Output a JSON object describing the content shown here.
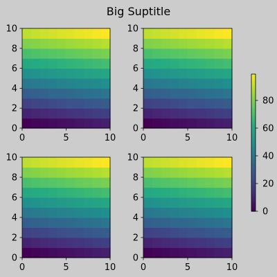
{
  "chart_data": {
    "type": "heatmap",
    "title": "Big Suptitle",
    "colormap": "viridis",
    "background": "#cccccc",
    "panels": [
      {
        "name": "top-left",
        "xlim": [
          0,
          10
        ],
        "ylim": [
          0,
          10
        ],
        "xticks": [
          "0",
          "5",
          "10"
        ],
        "yticks": [
          "0",
          "2",
          "4",
          "6",
          "8",
          "10"
        ],
        "rows": 10,
        "cols": 10,
        "values_formula": "row*10 + col (row 0 at bottom)"
      },
      {
        "name": "top-right",
        "xlim": [
          0,
          10
        ],
        "ylim": [
          0,
          10
        ],
        "xticks": [
          "0",
          "5",
          "10"
        ],
        "yticks": [
          "0",
          "2",
          "4",
          "6",
          "8",
          "10"
        ],
        "rows": 10,
        "cols": 10,
        "values_formula": "row*10 + col (row 0 at bottom)"
      },
      {
        "name": "bottom-left",
        "xlim": [
          0,
          10
        ],
        "ylim": [
          0,
          10
        ],
        "xticks": [
          "0",
          "5",
          "10"
        ],
        "yticks": [
          "0",
          "2",
          "4",
          "6",
          "8",
          "10"
        ],
        "rows": 10,
        "cols": 10,
        "values_formula": "row*10 + col (row 0 at bottom)"
      },
      {
        "name": "bottom-right",
        "xlim": [
          0,
          10
        ],
        "ylim": [
          0,
          10
        ],
        "xticks": [
          "0",
          "5",
          "10"
        ],
        "yticks": [
          "0",
          "2",
          "4",
          "6",
          "8",
          "10"
        ],
        "rows": 10,
        "cols": 10,
        "values_formula": "row*10 + col (row 0 at bottom)"
      }
    ],
    "colorbar": {
      "range": [
        0,
        99
      ],
      "ticks": [
        "0",
        "20",
        "40",
        "60",
        "80"
      ]
    }
  }
}
